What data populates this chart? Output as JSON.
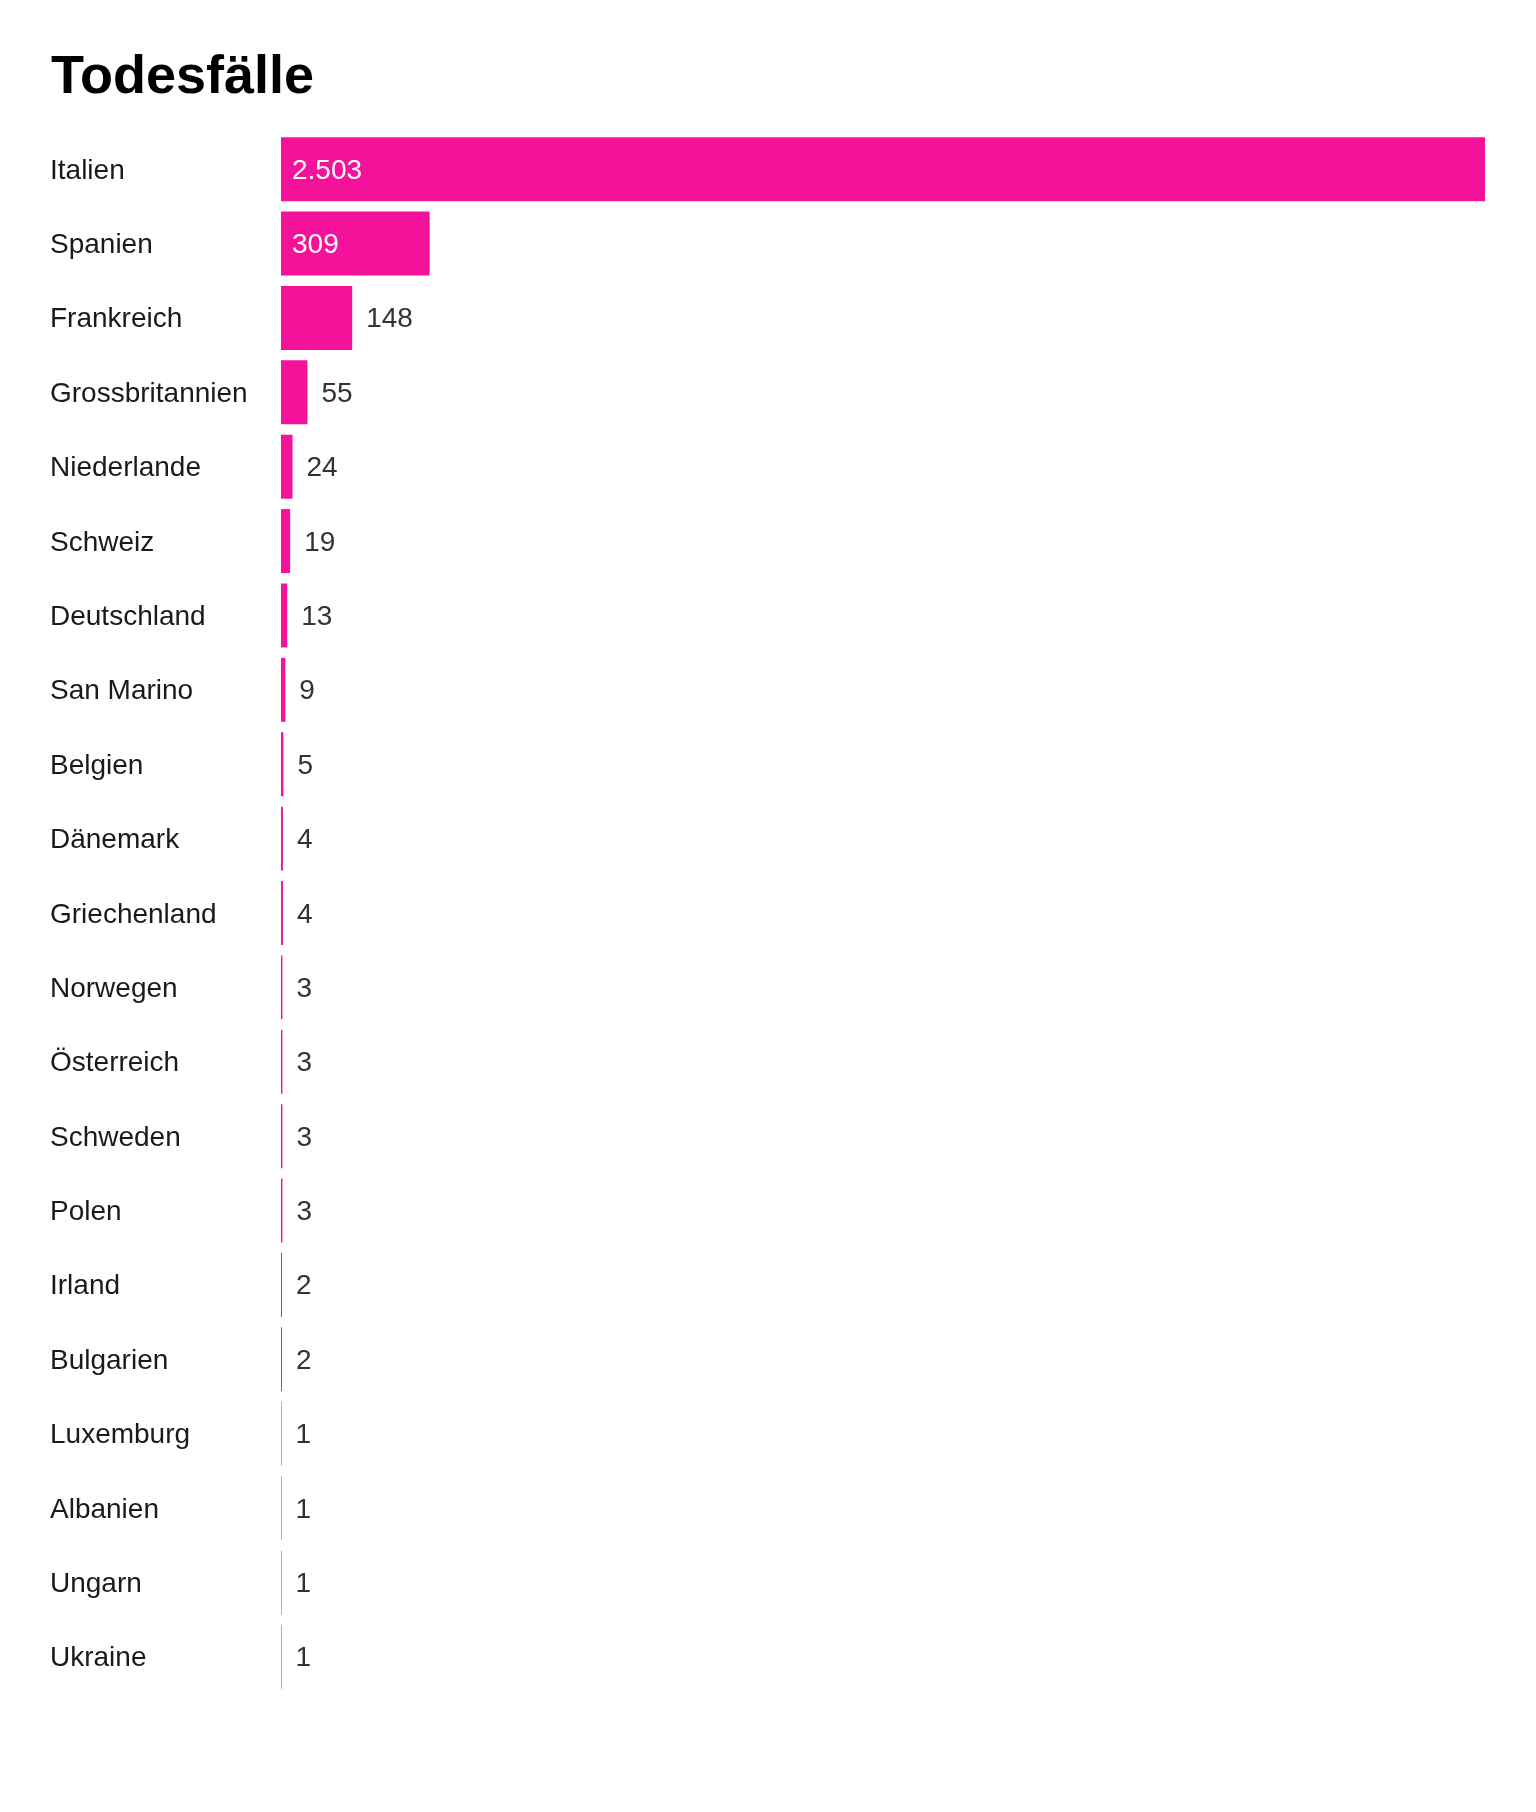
{
  "chart_data": {
    "type": "bar",
    "orientation": "horizontal",
    "title": "Todesfälle",
    "categories": [
      "Italien",
      "Spanien",
      "Frankreich",
      "Grossbritannien",
      "Niederlande",
      "Schweiz",
      "Deutschland",
      "San Marino",
      "Belgien",
      "Dänemark",
      "Griechenland",
      "Norwegen",
      "Österreich",
      "Schweden",
      "Polen",
      "Irland",
      "Bulgarien",
      "Luxemburg",
      "Albanien",
      "Ungarn",
      "Ukraine"
    ],
    "values": [
      2503,
      309,
      148,
      55,
      24,
      19,
      13,
      9,
      5,
      4,
      4,
      3,
      3,
      3,
      3,
      2,
      2,
      1,
      1,
      1,
      1
    ],
    "color": "#f5129a",
    "value_labels": [
      "2.503",
      "309",
      "148",
      "55",
      "24",
      "19",
      "13",
      "9",
      "5",
      "4",
      "4",
      "3",
      "3",
      "3",
      "3",
      "2",
      "2",
      "1",
      "1",
      "1",
      "1"
    ]
  }
}
